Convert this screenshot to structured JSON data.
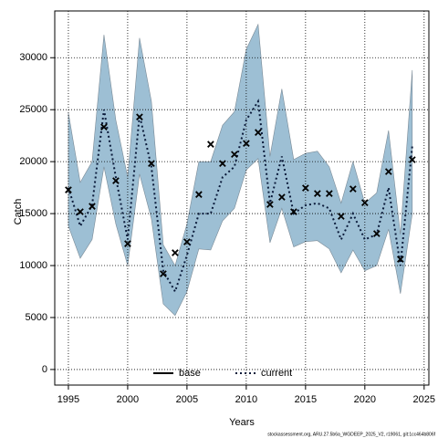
{
  "chart_data": {
    "type": "line",
    "xlabel": "Years",
    "ylabel": "Catch",
    "x": [
      1995,
      1996,
      1997,
      1998,
      1999,
      2000,
      2001,
      2002,
      2003,
      2004,
      2005,
      2006,
      2007,
      2008,
      2009,
      2010,
      2011,
      2012,
      2013,
      2014,
      2015,
      2016,
      2017,
      2018,
      2019,
      2020,
      2021,
      2022,
      2023,
      2024
    ],
    "xlim": [
      1993.85,
      2025.4
    ],
    "xticks": [
      1995,
      2000,
      2005,
      2010,
      2015,
      2020,
      2025
    ],
    "ylim": [
      -1500,
      34500
    ],
    "yticks": [
      0,
      5000,
      10000,
      15000,
      20000,
      25000,
      30000
    ],
    "grid": true,
    "band": {
      "color": "#9dbfd4",
      "upper": [
        24700,
        18000,
        20000,
        32200,
        24000,
        18500,
        31900,
        25800,
        12000,
        10000,
        14000,
        20000,
        20000,
        23500,
        24800,
        30800,
        33200,
        20500,
        27000,
        20200,
        20800,
        21000,
        19500,
        16000,
        20000,
        16000,
        17000,
        23000,
        13000,
        28800
      ],
      "lower": [
        13800,
        10700,
        12500,
        19500,
        14000,
        10000,
        18800,
        14500,
        6300,
        5200,
        7500,
        11600,
        11500,
        14300,
        15500,
        19200,
        20300,
        12200,
        15500,
        11800,
        12300,
        12400,
        11600,
        9300,
        11500,
        9500,
        10000,
        13500,
        7300,
        15000
      ]
    },
    "series": [
      {
        "name": "current",
        "color": "#0a1a3a",
        "style": "dotted",
        "values": [
          17500,
          13800,
          15800,
          25000,
          18500,
          12500,
          24500,
          19500,
          9500,
          7500,
          11000,
          15000,
          15000,
          18500,
          19500,
          24000,
          25800,
          16000,
          20500,
          15000,
          15800,
          16000,
          15500,
          12500,
          15000,
          12500,
          13000,
          17500,
          10000,
          21500
        ]
      }
    ],
    "observations": {
      "marker": "x",
      "color": "#000000",
      "values": [
        17280,
        15180,
        15700,
        23330,
        18160,
        12100,
        24300,
        19820,
        9210,
        11230,
        12280,
        16840,
        21670,
        19820,
        20700,
        21750,
        22810,
        15880,
        16580,
        15180,
        17460,
        16930,
        16930,
        14740,
        17370,
        16050,
        13070,
        19040,
        10610,
        20180
      ]
    },
    "legend": {
      "position": "bottom",
      "extra": [
        {
          "name": "base",
          "color": "#000000",
          "style": "solid"
        }
      ]
    },
    "footnote": "stockassessment.org, ARU.27.5b6a_WGDEEP_2025_V2, r19061, git:1cc464b806f"
  }
}
